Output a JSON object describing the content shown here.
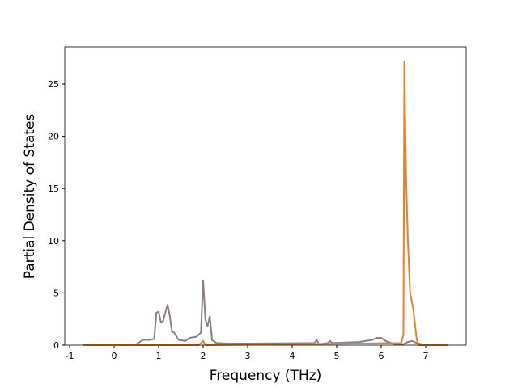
{
  "chart_data": {
    "type": "line",
    "x_label": "Frequency (THz)",
    "y_label": "Partial Density of States",
    "xlim": [
      -1.11,
      7.91
    ],
    "ylim": [
      0,
      28.56
    ],
    "xticks": [
      -1,
      0,
      1,
      2,
      3,
      4,
      5,
      6,
      7
    ],
    "yticks": [
      0,
      5,
      10,
      15,
      20,
      25
    ],
    "series": [
      {
        "color": "#8c7e8c",
        "x": [
          -0.7,
          0.2,
          0.5,
          0.65,
          0.8,
          0.9,
          0.95,
          1.0,
          1.05,
          1.1,
          1.2,
          1.25,
          1.3,
          1.35,
          1.45,
          1.6,
          1.7,
          1.85,
          1.95,
          2.0,
          2.05,
          2.1,
          2.15,
          2.2,
          2.3,
          2.6,
          3.0,
          4.5,
          4.55,
          4.6,
          4.8,
          4.85,
          4.9,
          5.5,
          5.8,
          5.9,
          6.0,
          6.1,
          6.3,
          6.5,
          6.6,
          6.7,
          6.8,
          7.0,
          7.5
        ],
        "values": [
          0,
          0,
          0.1,
          0.5,
          0.5,
          0.6,
          3.1,
          3.2,
          2.2,
          2.3,
          3.9,
          2.8,
          1.3,
          1.2,
          0.5,
          0.4,
          0.7,
          0.8,
          1.2,
          6.2,
          2.5,
          1.8,
          2.8,
          0.5,
          0.2,
          0.15,
          0.15,
          0.2,
          0.5,
          0.1,
          0.2,
          0.4,
          0.2,
          0.3,
          0.5,
          0.7,
          0.7,
          0.4,
          0.1,
          0.1,
          0.3,
          0.4,
          0.2,
          0,
          0
        ]
      },
      {
        "color": "#e8812a",
        "x": [
          -0.7,
          1.9,
          2.0,
          2.05,
          6.45,
          6.5,
          6.52,
          6.56,
          6.6,
          6.65,
          6.72,
          6.8,
          6.85,
          7.5
        ],
        "values": [
          0,
          0,
          0.4,
          0,
          0.2,
          1,
          27.2,
          16,
          10,
          5,
          3.5,
          0.5,
          0,
          0
        ]
      }
    ]
  }
}
